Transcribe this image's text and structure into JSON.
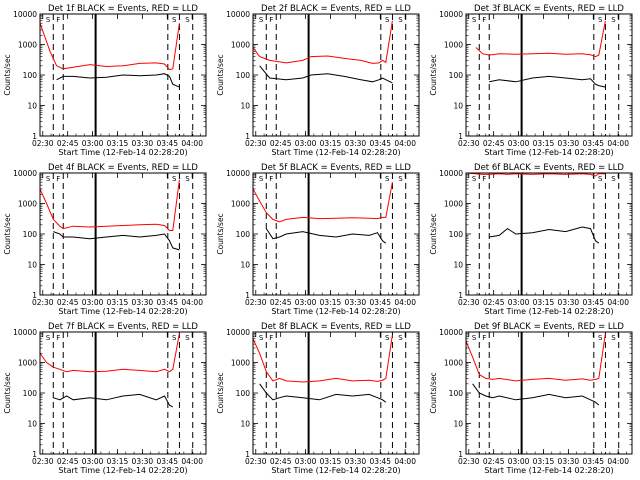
{
  "chart_data": {
    "type": "line",
    "layout": "3x3 grid",
    "xlabel": "Start Time (12-Feb-14 02:28:20)",
    "ylabel": "Counts/sec",
    "yscale": "log",
    "ylim": [
      1,
      10000
    ],
    "y_ticks": [
      1,
      10,
      100,
      1000,
      10000
    ],
    "y_tick_labels": [
      "1",
      "10",
      "100",
      "1000",
      "10000"
    ],
    "xlim_minutes": [
      0,
      100
    ],
    "x_ticks_minutes": [
      1.67,
      16.67,
      31.67,
      46.67,
      61.67,
      76.67,
      91.67
    ],
    "x_tick_labels": [
      "02:30",
      "02:45",
      "03:00",
      "03:15",
      "03:30",
      "03:45",
      "04:00"
    ],
    "series_colors": {
      "events": "#000000",
      "lld": "#ff0000"
    },
    "marker_labels": [
      "S",
      "F",
      "S",
      "S"
    ],
    "panels": [
      {
        "title": "Det 1f BLACK = Events, RED = LLD",
        "dashed_lines": [
          8,
          14,
          77,
          84,
          92
        ],
        "solid_lines": [
          33.5
        ],
        "x": [
          0,
          2,
          6,
          10,
          14,
          20,
          30,
          40,
          50,
          60,
          70,
          75,
          78,
          80,
          84
        ],
        "events": [
          null,
          null,
          null,
          70,
          90,
          90,
          80,
          85,
          100,
          95,
          100,
          110,
          90,
          50,
          40
        ],
        "lld": [
          5000,
          2500,
          600,
          200,
          160,
          180,
          220,
          190,
          200,
          240,
          250,
          230,
          150,
          160,
          5000
        ]
      },
      {
        "title": "Det 2f BLACK = Events, RED = LLD",
        "dashed_lines": [
          8,
          14,
          77,
          84,
          92
        ],
        "solid_lines": [
          33.5
        ],
        "x": [
          0,
          4,
          10,
          20,
          30,
          35,
          45,
          55,
          65,
          72,
          76,
          78,
          80,
          84
        ],
        "events": [
          null,
          200,
          80,
          70,
          80,
          100,
          110,
          90,
          70,
          60,
          70,
          80,
          70,
          55
        ],
        "lld": [
          800,
          400,
          300,
          250,
          300,
          400,
          420,
          350,
          300,
          240,
          250,
          300,
          260,
          6000
        ]
      },
      {
        "title": "Det 3f BLACK = Events, RED = LLD",
        "dashed_lines": [
          8,
          14,
          77,
          84,
          92
        ],
        "solid_lines": [
          33.5
        ],
        "x": [
          0,
          6,
          10,
          14,
          20,
          30,
          40,
          50,
          60,
          70,
          75,
          78,
          80,
          84
        ],
        "events": [
          null,
          null,
          null,
          60,
          70,
          60,
          80,
          90,
          80,
          70,
          75,
          50,
          45,
          40
        ],
        "lld": [
          null,
          800,
          500,
          450,
          500,
          480,
          500,
          520,
          480,
          500,
          460,
          400,
          450,
          6000
        ]
      },
      {
        "title": "Det 4f BLACK = Events, RED = LLD",
        "dashed_lines": [
          8,
          14,
          77,
          84,
          92
        ],
        "solid_lines": [
          33.5
        ],
        "x": [
          0,
          4,
          8,
          12,
          14,
          20,
          30,
          40,
          50,
          60,
          70,
          75,
          78,
          80,
          84
        ],
        "events": [
          null,
          null,
          120,
          100,
          80,
          80,
          70,
          80,
          90,
          80,
          90,
          100,
          60,
          35,
          30
        ],
        "lld": [
          3000,
          1000,
          300,
          180,
          150,
          180,
          170,
          180,
          190,
          200,
          210,
          190,
          130,
          130,
          6000
        ]
      },
      {
        "title": "Det 5f BLACK = Events, RED = LLD",
        "dashed_lines": [
          8,
          14,
          77,
          84,
          92
        ],
        "solid_lines": [
          33.5
        ],
        "x": [
          0,
          3,
          8,
          12,
          16,
          20,
          30,
          40,
          50,
          60,
          70,
          75,
          78,
          80,
          84
        ],
        "events": [
          null,
          null,
          150,
          70,
          80,
          100,
          120,
          90,
          80,
          100,
          90,
          110,
          60,
          50,
          null
        ],
        "lld": [
          3000,
          1500,
          500,
          300,
          250,
          300,
          350,
          320,
          330,
          340,
          330,
          320,
          350,
          350,
          5000
        ]
      },
      {
        "title": "Det 6f BLACK = Events, RED = LLD",
        "dashed_lines": [
          8,
          14,
          77,
          84,
          92
        ],
        "solid_lines": [
          33.5
        ],
        "x": [
          0,
          10,
          14,
          20,
          25,
          30,
          40,
          50,
          60,
          70,
          75,
          78,
          80,
          84
        ],
        "events": [
          null,
          null,
          80,
          90,
          150,
          100,
          110,
          140,
          120,
          170,
          150,
          60,
          50,
          null
        ],
        "lld": [
          10000,
          9000,
          9000,
          9500,
          9000,
          9500,
          9000,
          9500,
          9000,
          9500,
          9000,
          8000,
          9500,
          9500
        ]
      },
      {
        "title": "Det 7f BLACK = Events, RED = LLD",
        "dashed_lines": [
          8,
          14,
          77,
          84,
          92
        ],
        "solid_lines": [
          33.5
        ],
        "x": [
          0,
          4,
          8,
          12,
          16,
          20,
          30,
          40,
          50,
          60,
          70,
          75,
          78,
          80,
          84
        ],
        "events": [
          null,
          null,
          70,
          60,
          80,
          60,
          70,
          60,
          80,
          90,
          60,
          80,
          40,
          35,
          null
        ],
        "lld": [
          2000,
          1000,
          700,
          600,
          500,
          550,
          500,
          520,
          600,
          550,
          500,
          600,
          500,
          600,
          9000
        ]
      },
      {
        "title": "Det 8f BLACK = Events, RED = LLD",
        "dashed_lines": [
          8,
          14,
          77,
          84,
          92
        ],
        "solid_lines": [
          33.5
        ],
        "x": [
          0,
          4,
          8,
          12,
          16,
          20,
          30,
          40,
          50,
          60,
          70,
          75,
          78,
          80,
          84
        ],
        "events": [
          null,
          200,
          100,
          60,
          70,
          80,
          70,
          60,
          90,
          80,
          90,
          70,
          60,
          50,
          null
        ],
        "lld": [
          6000,
          2000,
          500,
          250,
          300,
          250,
          230,
          250,
          300,
          250,
          260,
          240,
          260,
          300,
          8000
        ]
      },
      {
        "title": "Det 9f BLACK = Events, RED = LLD",
        "dashed_lines": [
          8,
          14,
          77,
          84,
          92
        ],
        "solid_lines": [
          33.5
        ],
        "x": [
          0,
          4,
          8,
          12,
          16,
          20,
          30,
          40,
          50,
          60,
          70,
          75,
          78,
          80,
          84
        ],
        "events": [
          null,
          200,
          100,
          80,
          70,
          80,
          60,
          70,
          90,
          70,
          80,
          60,
          50,
          40,
          null
        ],
        "lld": [
          5000,
          1500,
          400,
          300,
          280,
          300,
          250,
          280,
          300,
          260,
          290,
          260,
          280,
          300,
          9000
        ]
      }
    ]
  }
}
